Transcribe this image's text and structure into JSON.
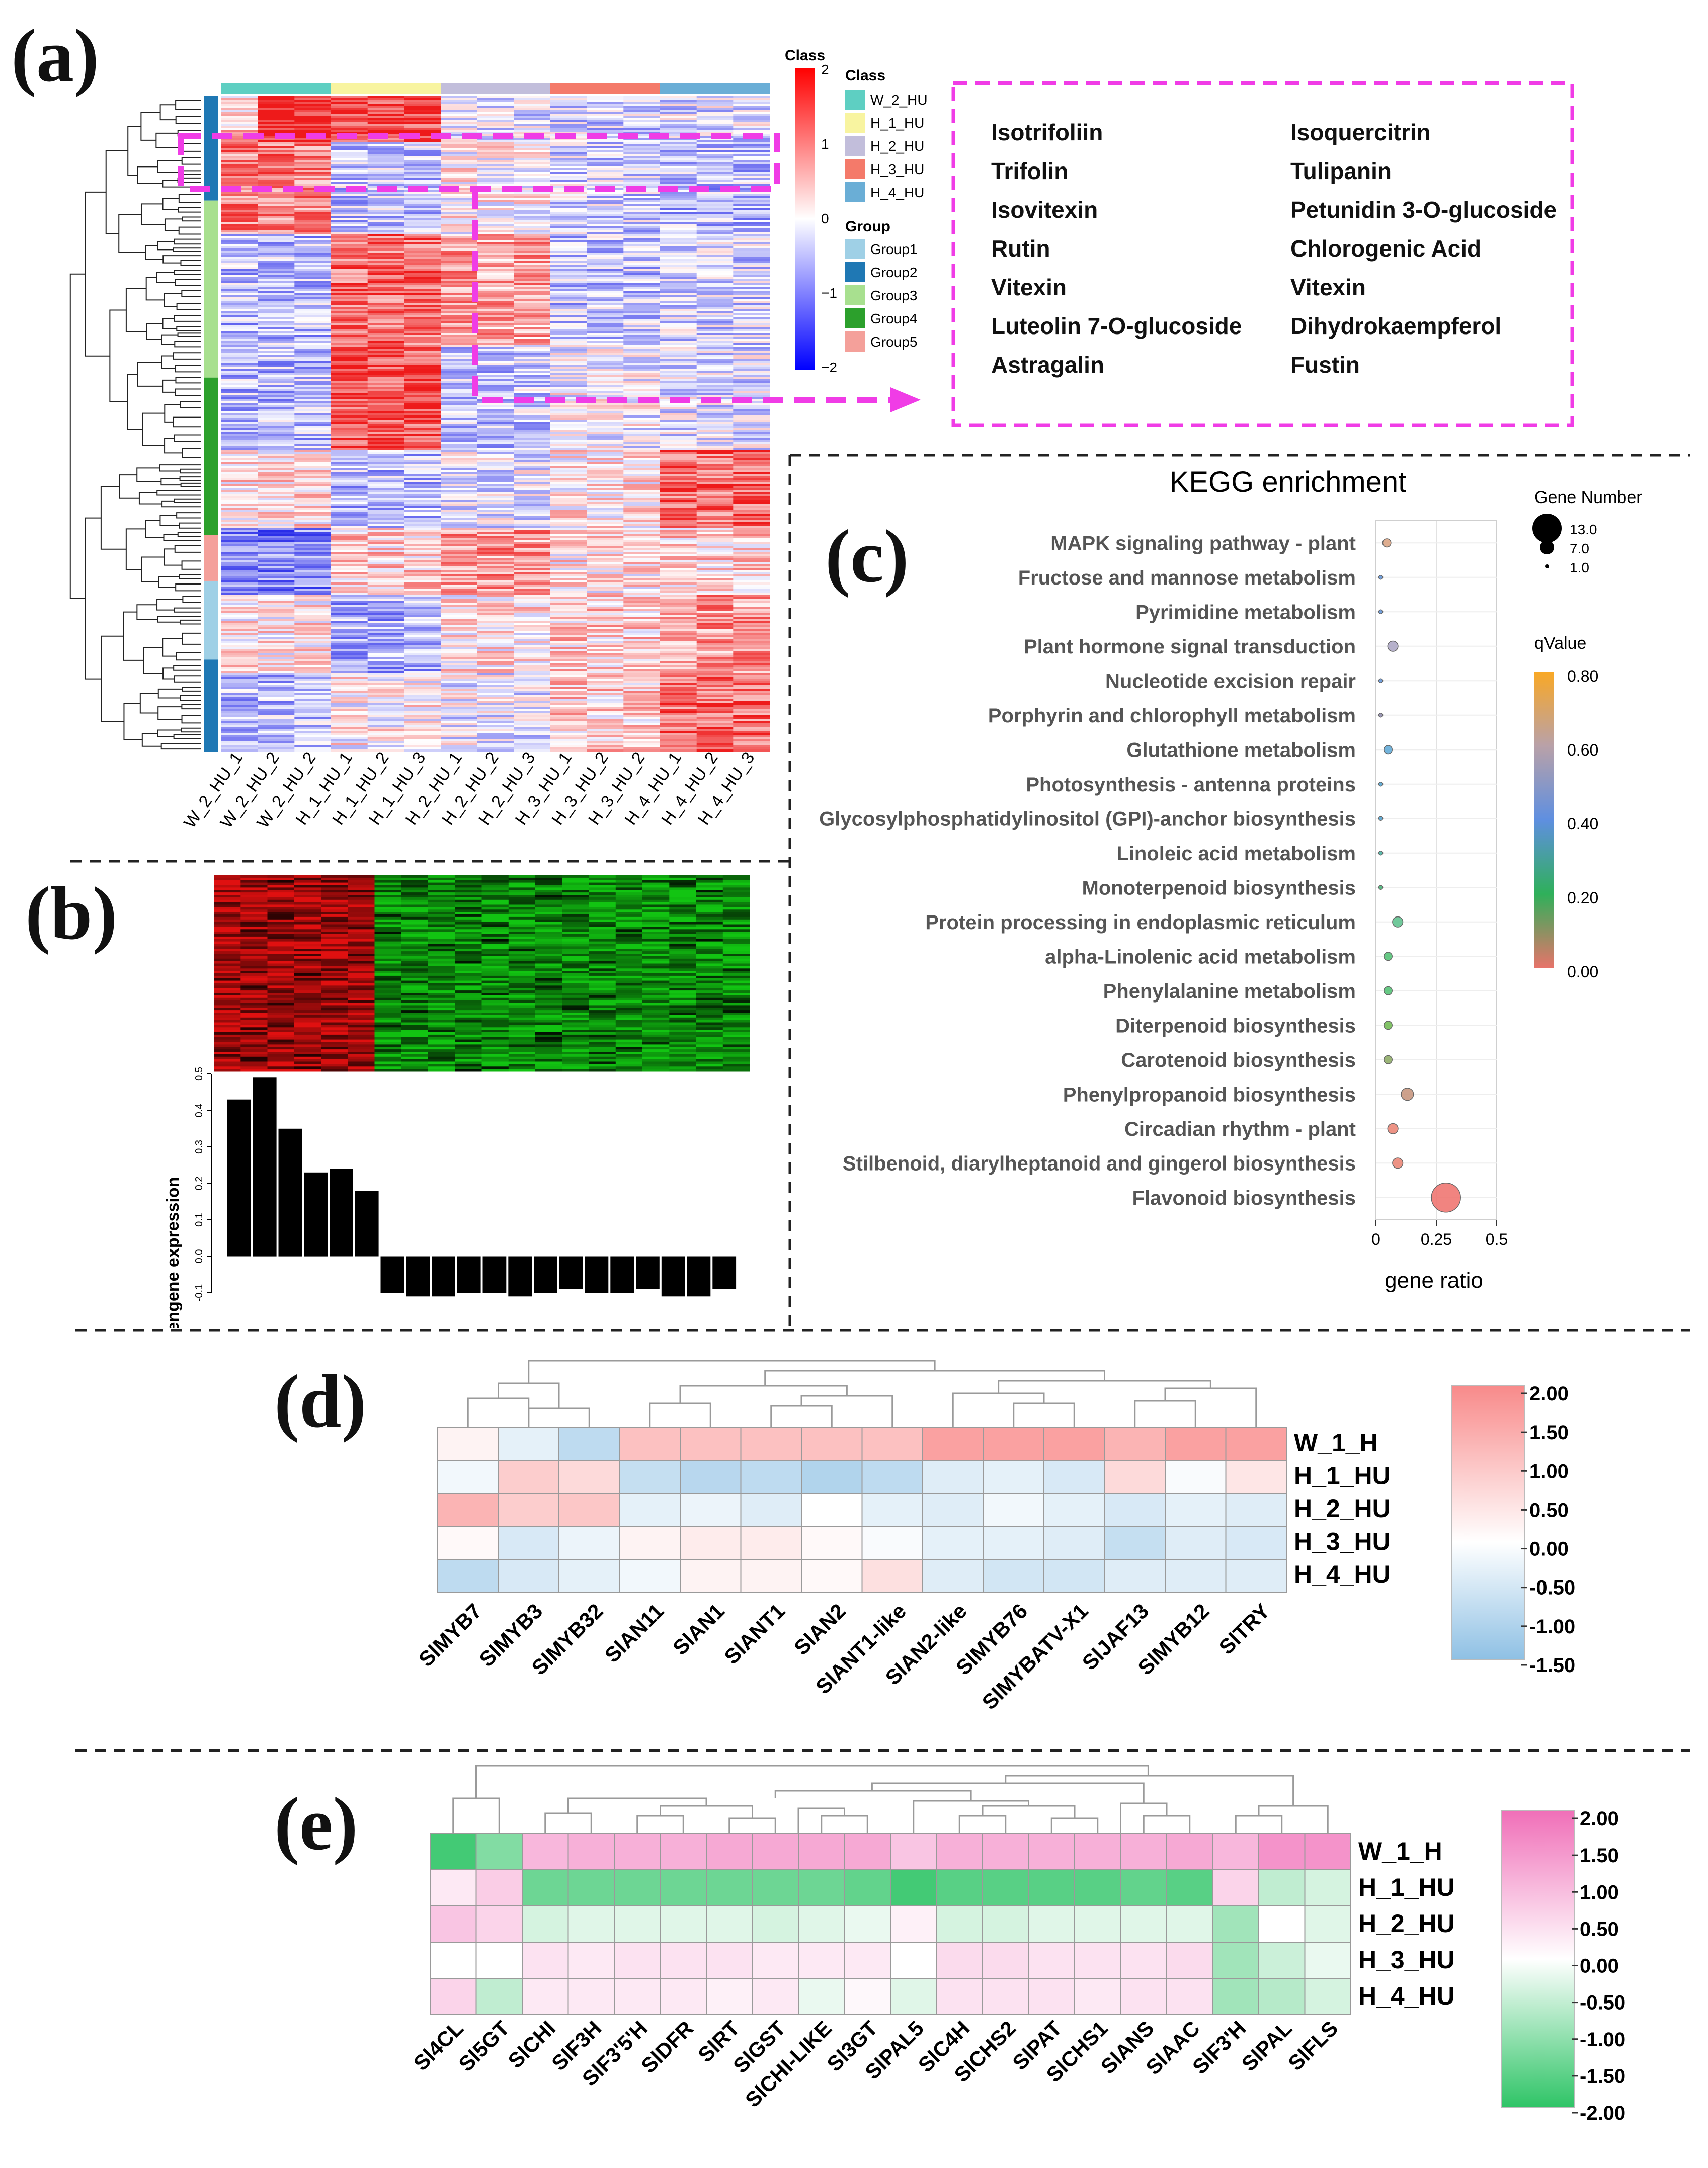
{
  "panels": {
    "a": "(a)",
    "b": "(b)",
    "c": "(c)",
    "d": "(d)",
    "e": "(e)"
  },
  "panel_a": {
    "class_bar_label": "Class",
    "class_legend_title": "Class",
    "classes": [
      {
        "name": "W_2_HU",
        "color": "#5ecfc2"
      },
      {
        "name": "H_1_HU",
        "color": "#f8f4a0"
      },
      {
        "name": "H_2_HU",
        "color": "#c2bedb"
      },
      {
        "name": "H_3_HU",
        "color": "#f47a6a"
      },
      {
        "name": "H_4_HU",
        "color": "#6aaed6"
      }
    ],
    "group_legend_title": "Group",
    "groups": [
      {
        "name": "Group1",
        "color": "#9fd0e6"
      },
      {
        "name": "Group2",
        "color": "#1f78b4"
      },
      {
        "name": "Group3",
        "color": "#a8e08f"
      },
      {
        "name": "Group4",
        "color": "#2ca02c"
      },
      {
        "name": "Group5",
        "color": "#f4a09a"
      }
    ],
    "scale_ticks": [
      "2",
      "1",
      "0",
      "−1",
      "−2"
    ],
    "samples": [
      "W_2_HU_1",
      "W_2_HU_2",
      "W_2_HU_2",
      "H_1_HU_1",
      "H_1_HU_2",
      "H_1_HU_3",
      "H_2_HU_1",
      "H_2_HU_2",
      "H_2_HU_3",
      "H_3_HU_1",
      "H_3_HU_2",
      "H_3_HU_2",
      "H_4_HU_1",
      "H_4_HU_2",
      "H_4_HU_3"
    ],
    "metabolites_left": [
      "Isotrifoliin",
      "Trifolin",
      "Isovitexin",
      "Rutin",
      "Vitexin",
      "Luteolin 7-O-glucoside",
      "Astragalin"
    ],
    "metabolites_right": [
      "Isoquercitrin",
      "Tulipanin",
      "Petunidin 3-O-glucoside",
      "Chlorogenic Acid",
      "Vitexin",
      "Dihydrokaempferol",
      "Fustin"
    ]
  },
  "panel_b": {
    "ylabel": "Eigengene expression",
    "yticks": [
      "0.5",
      "0.4",
      "0.3",
      "0.2",
      "0.1",
      "0.0",
      "-0.1"
    ],
    "chart_data": {
      "type": "bar",
      "ylim": [
        -0.1,
        0.5
      ],
      "values": [
        0.43,
        0.49,
        0.35,
        0.23,
        0.24,
        0.18,
        -0.1,
        -0.11,
        -0.11,
        -0.1,
        -0.1,
        -0.11,
        -0.1,
        -0.09,
        -0.1,
        -0.1,
        -0.09,
        -0.11,
        -0.11,
        -0.09
      ]
    }
  },
  "panel_c": {
    "chart_data": {
      "type": "scatter",
      "title": "KEGG  enrichment",
      "xlabel": "gene ratio",
      "xlim": [
        0,
        0.5
      ],
      "xticks": [
        "0",
        "0.25",
        "0.5"
      ],
      "size_legend_title": "Gene Number",
      "size_legend": [
        "13.0",
        "7.0",
        "1.0"
      ],
      "color_legend_title": "qValue",
      "color_ticks": [
        "0.80",
        "0.60",
        "0.40",
        "0.20",
        "0.00"
      ],
      "pathways": [
        {
          "name": "MAPK signaling pathway - plant",
          "ratio": 0.045,
          "count": 3,
          "color": "#d9a07c"
        },
        {
          "name": "Fructose and mannose metabolism",
          "ratio": 0.02,
          "count": 1,
          "color": "#5b8fd6"
        },
        {
          "name": "Pyrimidine metabolism",
          "ratio": 0.02,
          "count": 1,
          "color": "#5b8fd6"
        },
        {
          "name": "Plant hormone signal transduction",
          "ratio": 0.07,
          "count": 4,
          "color": "#a9a3c2"
        },
        {
          "name": "Nucleotide excision repair",
          "ratio": 0.02,
          "count": 1,
          "color": "#5b8fd6"
        },
        {
          "name": "Porphyrin and chlorophyll metabolism",
          "ratio": 0.02,
          "count": 1,
          "color": "#8b86a8"
        },
        {
          "name": "Glutathione metabolism",
          "ratio": 0.05,
          "count": 3,
          "color": "#5aa7d6"
        },
        {
          "name": "Photosynthesis - antenna proteins",
          "ratio": 0.02,
          "count": 1,
          "color": "#4aa0d0"
        },
        {
          "name": "Glycosylphosphatidylinositol (GPI)-anchor biosynthesis",
          "ratio": 0.02,
          "count": 1,
          "color": "#4aa0d0"
        },
        {
          "name": "Linoleic acid metabolism",
          "ratio": 0.02,
          "count": 1,
          "color": "#3fb0a0"
        },
        {
          "name": "Monoterpenoid biosynthesis",
          "ratio": 0.02,
          "count": 1,
          "color": "#3fb070"
        },
        {
          "name": "Protein processing in endoplasmic reticulum",
          "ratio": 0.09,
          "count": 4,
          "color": "#58c08a"
        },
        {
          "name": "alpha-Linolenic acid metabolism",
          "ratio": 0.05,
          "count": 3,
          "color": "#4cc070"
        },
        {
          "name": "Phenylalanine metabolism",
          "ratio": 0.05,
          "count": 3,
          "color": "#4cc070"
        },
        {
          "name": "Diterpenoid biosynthesis",
          "ratio": 0.05,
          "count": 3,
          "color": "#6cb84c"
        },
        {
          "name": "Carotenoid biosynthesis",
          "ratio": 0.05,
          "count": 3,
          "color": "#8aa860"
        },
        {
          "name": "Phenylpropanoid biosynthesis",
          "ratio": 0.13,
          "count": 5,
          "color": "#c49078"
        },
        {
          "name": "Circadian rhythm - plant",
          "ratio": 0.07,
          "count": 4,
          "color": "#ea8070"
        },
        {
          "name": "Stilbenoid, diarylheptanoid and gingerol biosynthesis",
          "ratio": 0.09,
          "count": 4,
          "color": "#ea8070"
        },
        {
          "name": "Flavonoid biosynthesis",
          "ratio": 0.29,
          "count": 13,
          "color": "#ef6f6a"
        }
      ]
    }
  },
  "panel_d": {
    "chart_data": {
      "type": "heatmap",
      "columns": [
        "SlMYB7",
        "SlMYB3",
        "SlMYB32",
        "SlAN11",
        "SlAN1",
        "SlANT1",
        "SlAN2",
        "SlANT1-like",
        "SlAN2-like",
        "SlMYB76",
        "SlMYBATV-X1",
        "SlJAF13",
        "SlMYB12",
        "SlTRY"
      ],
      "rows": [
        "W_1_H",
        "H_1_HU",
        "H_2_HU",
        "H_3_HU",
        "H_4_HU"
      ],
      "scale_ticks": [
        "2.00",
        "1.50",
        "1.00",
        "0.50",
        "0.00",
        "-0.50",
        "-1.00",
        "-1.50"
      ],
      "values": [
        [
          0.2,
          -0.4,
          -1.0,
          1.0,
          1.0,
          1.0,
          1.0,
          1.0,
          1.5,
          1.5,
          1.5,
          1.2,
          1.5,
          1.5
        ],
        [
          -0.2,
          0.8,
          0.6,
          -0.9,
          -1.1,
          -1.0,
          -1.2,
          -1.0,
          -0.5,
          -0.4,
          -0.6,
          0.6,
          -0.1,
          0.4
        ],
        [
          1.2,
          0.8,
          0.9,
          -0.4,
          -0.3,
          -0.5,
          0.0,
          -0.4,
          -0.5,
          -0.2,
          -0.4,
          -0.6,
          -0.4,
          -0.5
        ],
        [
          0.1,
          -0.6,
          -0.3,
          0.2,
          0.3,
          0.3,
          0.1,
          -0.1,
          -0.4,
          -0.4,
          -0.5,
          -0.9,
          -0.5,
          -0.6
        ],
        [
          -1.0,
          -0.6,
          -0.4,
          -0.2,
          0.2,
          0.2,
          0.1,
          0.5,
          -0.5,
          -0.7,
          -0.7,
          -0.5,
          -0.5,
          -0.5
        ]
      ]
    }
  },
  "panel_e": {
    "chart_data": {
      "type": "heatmap",
      "columns": [
        "Sl4CL",
        "Sl5GT",
        "SlCHI",
        "SlF3H",
        "SlF3'5'H",
        "SlDFR",
        "SlRT",
        "SlGST",
        "SlCHI-LIKE",
        "Sl3GT",
        "SlPAL5",
        "SlC4H",
        "SlCHS2",
        "SlPAT",
        "SlCHS1",
        "SlANS",
        "SlAAC",
        "SlF3'H",
        "SlPAL",
        "SlFLS"
      ],
      "rows": [
        "W_1_H",
        "H_1_HU",
        "H_2_HU",
        "H_3_HU",
        "H_4_HU"
      ],
      "scale_ticks": [
        "2.00",
        "1.50",
        "1.00",
        "0.50",
        "0.00",
        "-0.50",
        "-1.00",
        "-1.50",
        "-2.00"
      ],
      "values": [
        [
          -1.8,
          -1.2,
          1.0,
          1.1,
          1.1,
          1.1,
          1.2,
          1.2,
          1.2,
          1.2,
          0.8,
          1.1,
          1.1,
          1.1,
          1.1,
          1.1,
          1.2,
          1.0,
          1.5,
          1.5
        ],
        [
          0.3,
          0.7,
          -1.4,
          -1.4,
          -1.4,
          -1.4,
          -1.4,
          -1.4,
          -1.4,
          -1.5,
          -1.8,
          -1.6,
          -1.6,
          -1.6,
          -1.6,
          -1.5,
          -1.6,
          0.6,
          -0.6,
          -0.4
        ],
        [
          0.8,
          0.6,
          -0.4,
          -0.3,
          -0.3,
          -0.3,
          -0.3,
          -0.4,
          -0.3,
          -0.2,
          0.2,
          -0.4,
          -0.4,
          -0.3,
          -0.3,
          -0.3,
          -0.3,
          -0.9,
          0.0,
          -0.3
        ],
        [
          0.0,
          0.0,
          0.4,
          0.3,
          0.4,
          0.4,
          0.4,
          0.3,
          0.3,
          0.3,
          0.0,
          0.5,
          0.5,
          0.4,
          0.4,
          0.4,
          0.5,
          -0.9,
          -0.5,
          -0.2
        ],
        [
          0.6,
          -0.6,
          0.3,
          0.3,
          0.3,
          0.3,
          0.2,
          0.3,
          -0.2,
          0.1,
          -0.3,
          0.4,
          0.4,
          0.4,
          0.3,
          0.4,
          0.4,
          -0.9,
          -0.7,
          -0.4
        ]
      ]
    }
  }
}
